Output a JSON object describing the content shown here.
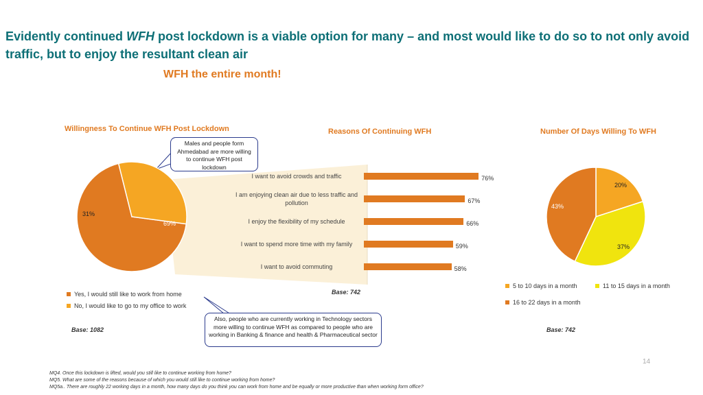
{
  "headline": {
    "part1": "Evidently continued ",
    "wfh": "WFH",
    "part2": " post lockdown is a viable option for many  – and most would like to do so to not only avoid traffic, but to enjoy the resultant clean air"
  },
  "subhead": "WFH the entire month!",
  "colors": {
    "orange": "#e07a21",
    "light_orange": "#f5a623",
    "yellow": "#f0e40e",
    "teal": "#0d6f76"
  },
  "callouts": {
    "top": "Males and people form Ahmedabad  are more willing to continue WFH post lockdown",
    "bottom": "Also, people who are currently working in Technology sectors more willing to continue WFH as compared to people who are working in Banking & finance  and health & Pharmaceutical sector"
  },
  "chart_data": [
    {
      "type": "pie",
      "title": "Willingness To Continue WFH Post Lockdown",
      "slices": [
        {
          "label": "Yes, I would still like to work from home",
          "value": 69,
          "display": "69%",
          "color": "#e07a21"
        },
        {
          "label": "No, I would like to go to my office to work",
          "value": 31,
          "display": "31%",
          "color": "#f5a623"
        }
      ],
      "base": "Base: 1082"
    },
    {
      "type": "bar",
      "orientation": "horizontal",
      "title": "Reasons Of Continuing WFH",
      "categories": [
        "I want to avoid crowds and traffic",
        "I am enjoying clean air due to less traffic and pollution",
        "I enjoy the flexibility of my schedule",
        "I want to spend more time with my family",
        "I want to avoid commuting"
      ],
      "values": [
        76,
        67,
        66,
        59,
        58
      ],
      "value_labels": [
        "76%",
        "67%",
        "66%",
        "59%",
        "58%"
      ],
      "xlim": [
        0,
        100
      ],
      "color": "#e07a21",
      "base": "Base: 742"
    },
    {
      "type": "pie",
      "title": "Number Of Days Willing To WFH",
      "slices": [
        {
          "label": "5 to 10 days in a month",
          "value": 20,
          "display": "20%",
          "color": "#f5a623"
        },
        {
          "label": "11 to 15 days in a month",
          "value": 37,
          "display": "37%",
          "color": "#f0e40e"
        },
        {
          "label": "16 to 22 days in a month",
          "value": 43,
          "display": "43%",
          "color": "#e07a21"
        }
      ],
      "base": "Base: 742"
    }
  ],
  "page_number": "14",
  "footnotes": [
    "MQ4. Once this lockdown is lifted, would you still like to continue working from home?",
    "MQ5. What are some of the reasons because of which you would still like to continue working from home?",
    "MQ5a.. There are roughly 22 working days in a month, how many days do you think you can work from home and be equally or more productive than when working form office?"
  ]
}
